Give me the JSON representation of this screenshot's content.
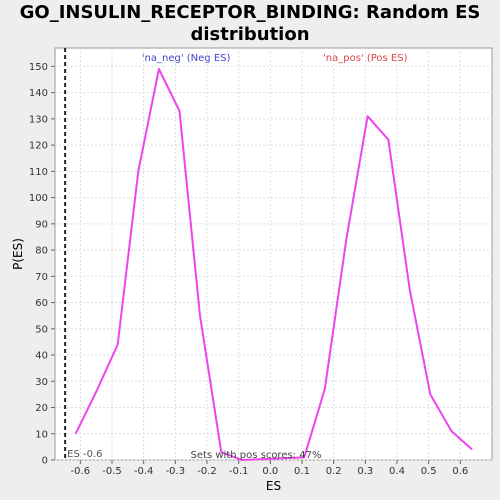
{
  "chart_data": {
    "type": "line",
    "title": "GO_INSULIN_RECEPTOR_BINDING: Random ES distribution",
    "xlabel": "ES",
    "ylabel": "P(ES)",
    "xlim": [
      -0.68,
      0.7
    ],
    "ylim": [
      0,
      157
    ],
    "x_ticks": [
      "-0.6",
      "-0.5",
      "-0.4",
      "-0.3",
      "-0.2",
      "-0.1",
      "0.0",
      "0.1",
      "0.2",
      "0.3",
      "0.4",
      "0.5",
      "0.6"
    ],
    "y_ticks": [
      "0",
      "10",
      "20",
      "30",
      "40",
      "50",
      "60",
      "70",
      "80",
      "90",
      "100",
      "110",
      "120",
      "130",
      "140",
      "150"
    ],
    "grid": true,
    "series": [
      {
        "color": "#ee44ee",
        "x": [
          -0.615,
          -0.55,
          -0.482,
          -0.417,
          -0.352,
          -0.287,
          -0.222,
          -0.155,
          -0.09,
          0.107,
          0.172,
          0.24,
          0.307,
          0.373,
          0.44,
          0.505,
          0.572,
          0.637
        ],
        "y": [
          10,
          26,
          44,
          110,
          149,
          133,
          55,
          3,
          0,
          1,
          27,
          84,
          131,
          122,
          65,
          25,
          11,
          4
        ]
      }
    ],
    "annotations": {
      "neg_label": "'na_neg' (Neg ES)",
      "pos_label": "'na_pos' (Pos ES)",
      "neg_color": "#4444cc",
      "pos_color": "#dd4444",
      "observed_es_label": "ES -0.6",
      "observed_es_x": -0.648,
      "pos_share_label": "Sets with pos scores: 47%"
    }
  }
}
